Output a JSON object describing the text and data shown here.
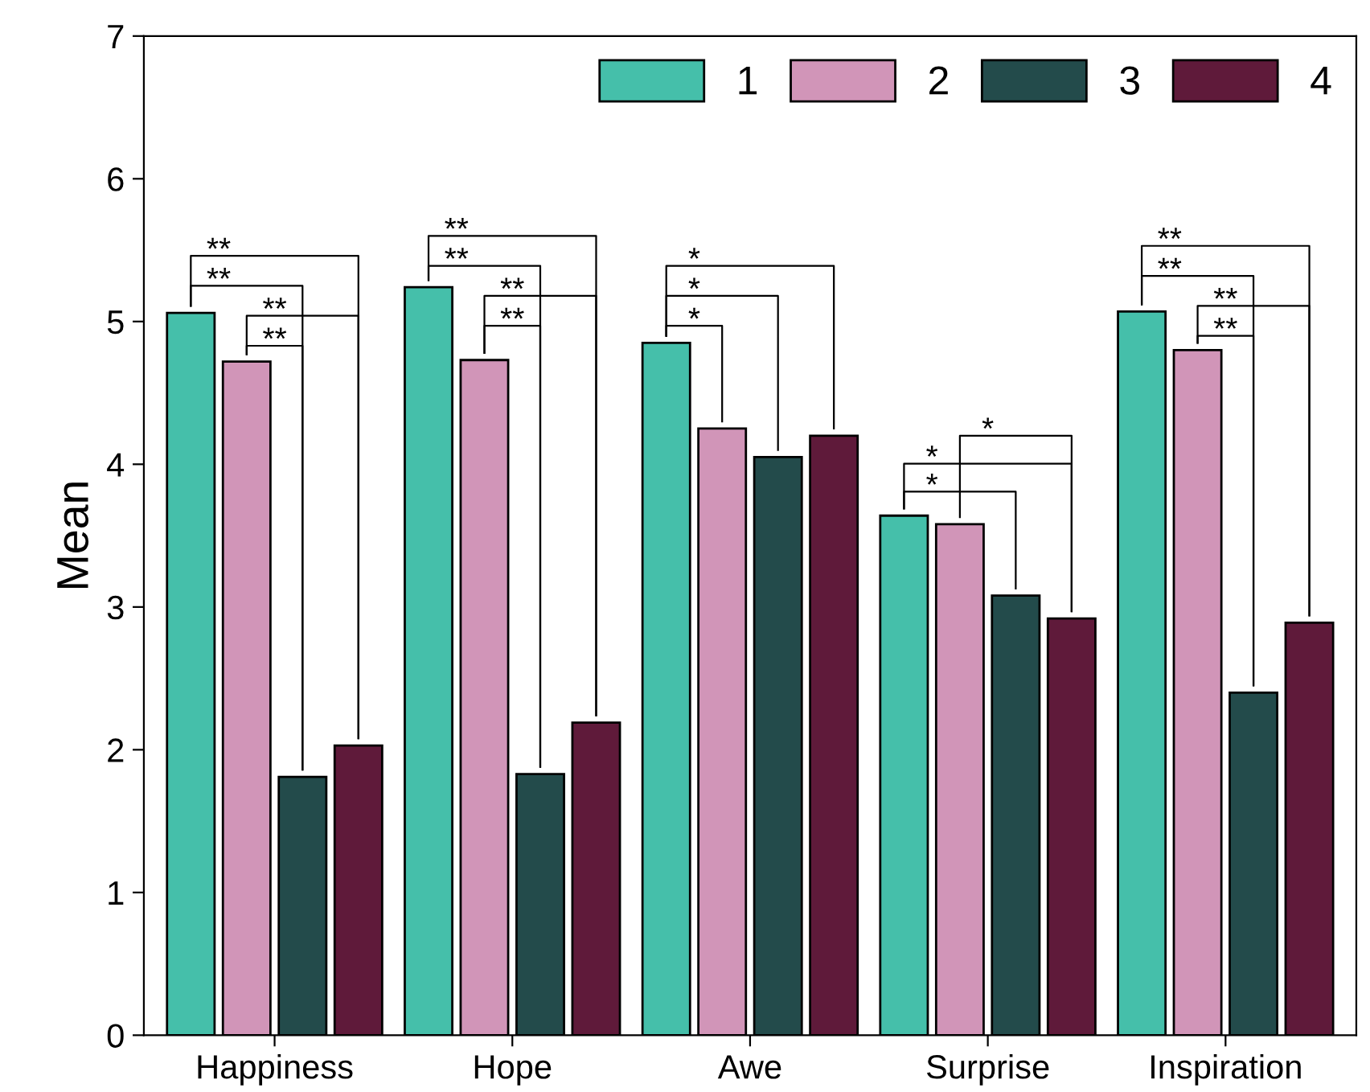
{
  "chart_data": {
    "type": "bar",
    "ylabel": "Mean",
    "categories": [
      "Happiness",
      "Hope",
      "Awe",
      "Surprise",
      "Inspiration"
    ],
    "series": [
      {
        "name": "1",
        "color": "#45bfaa",
        "values": [
          5.06,
          5.24,
          4.85,
          3.64,
          5.07
        ]
      },
      {
        "name": "2",
        "color": "#d195b8",
        "values": [
          4.72,
          4.73,
          4.25,
          3.58,
          4.8
        ]
      },
      {
        "name": "3",
        "color": "#234b4b",
        "values": [
          1.81,
          1.83,
          4.05,
          3.08,
          2.4
        ]
      },
      {
        "name": "4",
        "color": "#5f1a3a",
        "values": [
          2.03,
          2.19,
          4.2,
          2.92,
          2.89
        ]
      }
    ],
    "ylim": [
      0,
      7
    ],
    "yticks": [
      0,
      1,
      2,
      3,
      4,
      5,
      6,
      7
    ],
    "grid": false,
    "legend": "top right",
    "annotations": [
      "**",
      "**",
      "**",
      "**",
      "**",
      "**",
      "**",
      "**",
      "*",
      "*",
      "*",
      "*",
      "*",
      "*",
      "**",
      "**",
      "**",
      "**"
    ]
  }
}
